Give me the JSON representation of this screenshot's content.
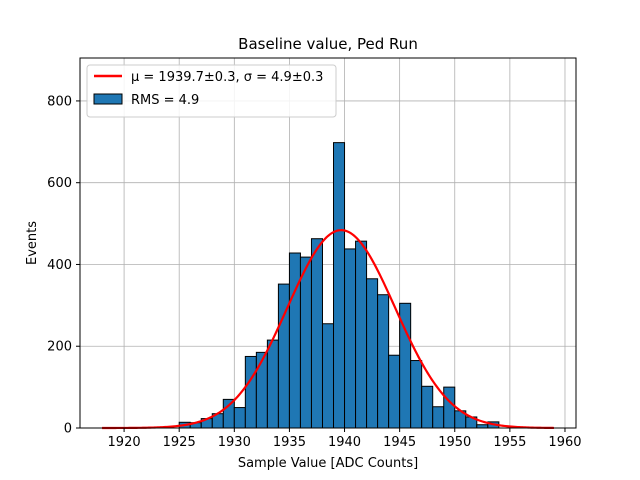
{
  "chart_data": {
    "type": "bar",
    "title": "Baseline value, Ped Run",
    "xlabel": "Sample Value [ADC Counts]",
    "ylabel": "Events",
    "xlim": [
      1916,
      1961
    ],
    "ylim": [
      0,
      905
    ],
    "xticks": [
      1920,
      1925,
      1930,
      1935,
      1940,
      1945,
      1950,
      1955,
      1960
    ],
    "yticks": [
      0,
      200,
      400,
      600,
      800
    ],
    "grid": true,
    "legend_placement": "upper-left",
    "histogram": {
      "name": "RMS = 4.9",
      "color": "#1f77b4",
      "edge_color": "#000000",
      "bin_width": 1,
      "bins": [
        {
          "x": 1925,
          "y": 14
        },
        {
          "x": 1926,
          "y": 13
        },
        {
          "x": 1927,
          "y": 23
        },
        {
          "x": 1928,
          "y": 35
        },
        {
          "x": 1929,
          "y": 70
        },
        {
          "x": 1930,
          "y": 50
        },
        {
          "x": 1931,
          "y": 175
        },
        {
          "x": 1932,
          "y": 185
        },
        {
          "x": 1933,
          "y": 215
        },
        {
          "x": 1934,
          "y": 352
        },
        {
          "x": 1935,
          "y": 428
        },
        {
          "x": 1936,
          "y": 418
        },
        {
          "x": 1937,
          "y": 463
        },
        {
          "x": 1938,
          "y": 255
        },
        {
          "x": 1939,
          "y": 698
        },
        {
          "x": 1940,
          "y": 438
        },
        {
          "x": 1941,
          "y": 457
        },
        {
          "x": 1942,
          "y": 365
        },
        {
          "x": 1943,
          "y": 326
        },
        {
          "x": 1944,
          "y": 178
        },
        {
          "x": 1945,
          "y": 305
        },
        {
          "x": 1946,
          "y": 165
        },
        {
          "x": 1947,
          "y": 102
        },
        {
          "x": 1948,
          "y": 52
        },
        {
          "x": 1949,
          "y": 100
        },
        {
          "x": 1950,
          "y": 42
        },
        {
          "x": 1951,
          "y": 27
        },
        {
          "x": 1952,
          "y": 8
        },
        {
          "x": 1953,
          "y": 15
        }
      ]
    },
    "fit": {
      "name": "μ = 1939.7±0.3, σ = 4.9±0.3",
      "color": "#ff0000",
      "type": "gaussian",
      "mu": 1939.7,
      "sigma": 4.9,
      "amplitude": 484,
      "x_range": [
        1918,
        1959
      ]
    }
  }
}
